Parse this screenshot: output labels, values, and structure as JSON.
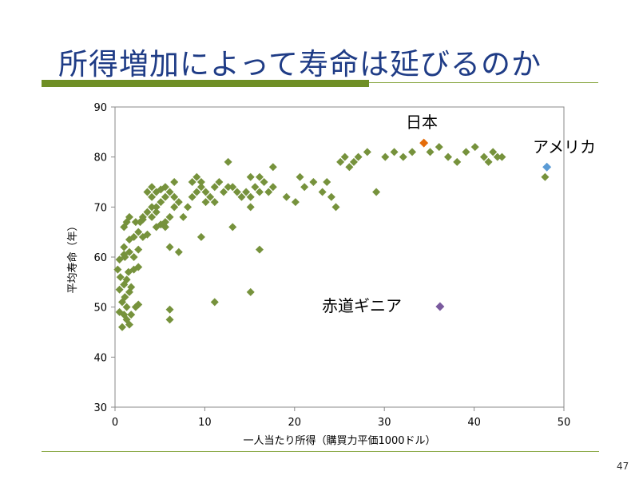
{
  "slide": {
    "title": "所得増加によって寿命は延びるのか",
    "page_number": "47"
  },
  "colors": {
    "title": "#1f3c86",
    "accent_bar": "#6f8f25",
    "default_point": "#76923c",
    "japan": "#e46c0a",
    "usa": "#5b9bd5",
    "equatorial_guinea": "#7a5a9e"
  },
  "chart_data": {
    "type": "scatter",
    "xlabel": "一人当たり所得（購買力平価1000ドル）",
    "ylabel": "平均寿命（年）",
    "xlim": [
      0,
      50
    ],
    "ylim": [
      30,
      90
    ],
    "xticks": [
      "0",
      "10",
      "20",
      "30",
      "40",
      "50"
    ],
    "yticks": [
      "30",
      "40",
      "50",
      "60",
      "70",
      "80",
      "90"
    ],
    "grid": false,
    "points": [
      [
        0.8,
        46
      ],
      [
        1.3,
        47.5
      ],
      [
        1.6,
        46.5
      ],
      [
        1.0,
        48.5
      ],
      [
        1.3,
        50
      ],
      [
        1.8,
        48.5
      ],
      [
        0.5,
        49
      ],
      [
        0.8,
        51
      ],
      [
        1.1,
        52
      ],
      [
        1.6,
        53
      ],
      [
        1.8,
        54
      ],
      [
        2.3,
        50
      ],
      [
        2.6,
        50.5
      ],
      [
        0.5,
        53.5
      ],
      [
        1.0,
        54.5
      ],
      [
        1.3,
        55.5
      ],
      [
        0.6,
        56
      ],
      [
        0.3,
        57.5
      ],
      [
        1.5,
        57
      ],
      [
        0.5,
        59.5
      ],
      [
        1.1,
        60
      ],
      [
        1.6,
        61
      ],
      [
        2.1,
        60
      ],
      [
        1.0,
        60.5
      ],
      [
        2.6,
        61.5
      ],
      [
        2.1,
        57.5
      ],
      [
        2.6,
        58
      ],
      [
        1.0,
        62
      ],
      [
        1.6,
        63.5
      ],
      [
        2.1,
        64
      ],
      [
        2.6,
        65
      ],
      [
        3.1,
        64
      ],
      [
        3.6,
        64.5
      ],
      [
        1.0,
        66
      ],
      [
        1.3,
        67
      ],
      [
        1.6,
        68
      ],
      [
        2.3,
        67
      ],
      [
        2.8,
        67
      ],
      [
        3.1,
        68
      ],
      [
        3.6,
        69
      ],
      [
        4.1,
        70
      ],
      [
        4.6,
        70
      ],
      [
        5.1,
        71
      ],
      [
        4.1,
        72
      ],
      [
        4.6,
        73
      ],
      [
        5.6,
        72
      ],
      [
        6.1,
        73
      ],
      [
        6.6,
        72
      ],
      [
        5.1,
        73.5
      ],
      [
        5.6,
        74
      ],
      [
        4.1,
        74
      ],
      [
        3.6,
        73
      ],
      [
        6.6,
        75
      ],
      [
        4.6,
        66
      ],
      [
        5.1,
        66.5
      ],
      [
        5.6,
        67
      ],
      [
        4.1,
        68
      ],
      [
        3.1,
        67.5
      ],
      [
        4.6,
        69
      ],
      [
        5.6,
        66
      ],
      [
        6.1,
        68
      ],
      [
        6.6,
        70
      ],
      [
        7.1,
        71
      ],
      [
        7.6,
        68
      ],
      [
        8.1,
        70
      ],
      [
        8.6,
        72
      ],
      [
        9.1,
        73
      ],
      [
        9.6,
        74
      ],
      [
        8.6,
        75
      ],
      [
        9.1,
        76
      ],
      [
        10.1,
        73
      ],
      [
        10.6,
        72
      ],
      [
        11.1,
        74
      ],
      [
        11.6,
        75
      ],
      [
        12.1,
        73
      ],
      [
        12.6,
        74
      ],
      [
        13.1,
        74
      ],
      [
        13.6,
        73
      ],
      [
        14.1,
        72
      ],
      [
        14.6,
        73
      ],
      [
        15.1,
        72
      ],
      [
        15.6,
        74
      ],
      [
        16.1,
        73
      ],
      [
        16.6,
        75
      ],
      [
        17.1,
        73
      ],
      [
        17.6,
        74
      ],
      [
        15.1,
        76
      ],
      [
        16.1,
        76
      ],
      [
        9.6,
        75
      ],
      [
        10.1,
        71
      ],
      [
        11.1,
        71
      ],
      [
        13.1,
        66
      ],
      [
        9.6,
        64
      ],
      [
        7.1,
        61
      ],
      [
        6.1,
        62
      ],
      [
        12.6,
        79
      ],
      [
        15.1,
        70
      ],
      [
        19.1,
        72
      ],
      [
        20.1,
        71
      ],
      [
        21.1,
        74
      ],
      [
        22.1,
        75
      ],
      [
        23.1,
        73
      ],
      [
        24.1,
        72
      ],
      [
        24.6,
        70
      ],
      [
        23.6,
        75
      ],
      [
        20.6,
        76
      ],
      [
        17.6,
        78
      ],
      [
        25.1,
        79
      ],
      [
        25.6,
        80
      ],
      [
        26.1,
        78
      ],
      [
        26.6,
        79
      ],
      [
        27.1,
        80
      ],
      [
        28.1,
        81
      ],
      [
        29.1,
        73
      ],
      [
        30.1,
        80
      ],
      [
        31.1,
        81
      ],
      [
        32.1,
        80
      ],
      [
        33.1,
        81
      ],
      [
        35.1,
        81
      ],
      [
        36.1,
        82
      ],
      [
        37.1,
        80
      ],
      [
        38.1,
        79
      ],
      [
        39.1,
        81
      ],
      [
        40.1,
        82
      ],
      [
        41.1,
        80
      ],
      [
        41.6,
        79
      ],
      [
        42.1,
        81
      ],
      [
        42.6,
        80
      ],
      [
        43.1,
        80
      ],
      [
        15.1,
        53
      ],
      [
        11.1,
        51
      ],
      [
        6.1,
        49.5
      ],
      [
        6.1,
        47.5
      ],
      [
        16.1,
        61.5
      ],
      [
        47.9,
        76
      ]
    ],
    "highlights": [
      {
        "label": "日本",
        "x": 34.4,
        "y": 82.8,
        "color_key": "japan"
      },
      {
        "label": "アメリカ",
        "x": 48.1,
        "y": 78.0,
        "color_key": "usa"
      },
      {
        "label": "赤道ギニア",
        "x": 36.2,
        "y": 50.1,
        "color_key": "equatorial_guinea"
      }
    ]
  }
}
